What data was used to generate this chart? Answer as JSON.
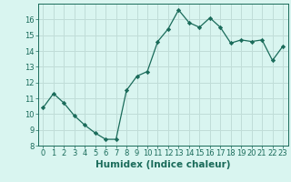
{
  "x": [
    0,
    1,
    2,
    3,
    4,
    5,
    6,
    7,
    8,
    9,
    10,
    11,
    12,
    13,
    14,
    15,
    16,
    17,
    18,
    19,
    20,
    21,
    22,
    23
  ],
  "y": [
    10.4,
    11.3,
    10.7,
    9.9,
    9.3,
    8.8,
    8.4,
    8.4,
    11.5,
    12.4,
    12.7,
    14.6,
    15.4,
    16.6,
    15.8,
    15.5,
    16.1,
    15.5,
    14.5,
    14.7,
    14.6,
    14.7,
    13.4,
    14.3
  ],
  "line_color": "#1a6b5a",
  "marker": "D",
  "marker_size": 2.2,
  "bg_color": "#d9f5f0",
  "grid_color": "#c0ddd8",
  "xlabel": "Humidex (Indice chaleur)",
  "ylim": [
    8,
    17
  ],
  "xlim": [
    -0.5,
    23.5
  ],
  "yticks": [
    8,
    9,
    10,
    11,
    12,
    13,
    14,
    15,
    16
  ],
  "xticks": [
    0,
    1,
    2,
    3,
    4,
    5,
    6,
    7,
    8,
    9,
    10,
    11,
    12,
    13,
    14,
    15,
    16,
    17,
    18,
    19,
    20,
    21,
    22,
    23
  ],
  "tick_color": "#1a6b5a",
  "label_color": "#1a6b5a",
  "label_fontsize": 7.5,
  "tick_fontsize": 6.0
}
